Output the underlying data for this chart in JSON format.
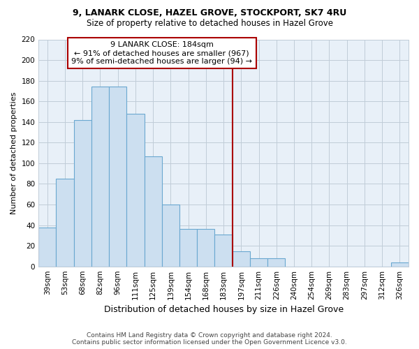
{
  "title": "9, LANARK CLOSE, HAZEL GROVE, STOCKPORT, SK7 4RU",
  "subtitle": "Size of property relative to detached houses in Hazel Grove",
  "xlabel": "Distribution of detached houses by size in Hazel Grove",
  "ylabel": "Number of detached properties",
  "categories": [
    "39sqm",
    "53sqm",
    "68sqm",
    "82sqm",
    "96sqm",
    "111sqm",
    "125sqm",
    "139sqm",
    "154sqm",
    "168sqm",
    "183sqm",
    "197sqm",
    "211sqm",
    "226sqm",
    "240sqm",
    "254sqm",
    "269sqm",
    "283sqm",
    "297sqm",
    "312sqm",
    "326sqm"
  ],
  "values": [
    38,
    85,
    142,
    174,
    174,
    148,
    107,
    60,
    36,
    36,
    31,
    15,
    8,
    8,
    0,
    0,
    0,
    0,
    0,
    0,
    4
  ],
  "bar_color": "#ccdff0",
  "bar_edge_color": "#6aa8d0",
  "plot_bg_color": "#e8f0f8",
  "grid_color": "#c0ccd8",
  "annotation_box_color": "#aa0000",
  "annotation_text_line1": "9 LANARK CLOSE: 184sqm",
  "annotation_text_line2": "← 91% of detached houses are smaller (967)",
  "annotation_text_line3": "9% of semi-detached houses are larger (94) →",
  "property_line_x": 10.5,
  "ylim": [
    0,
    220
  ],
  "yticks": [
    0,
    20,
    40,
    60,
    80,
    100,
    120,
    140,
    160,
    180,
    200,
    220
  ],
  "footer": "Contains HM Land Registry data © Crown copyright and database right 2024.\nContains public sector information licensed under the Open Government Licence v3.0.",
  "title_fontsize": 9,
  "subtitle_fontsize": 8.5,
  "xlabel_fontsize": 9,
  "ylabel_fontsize": 8,
  "tick_fontsize": 7.5,
  "footer_fontsize": 6.5,
  "annot_fontsize": 8
}
